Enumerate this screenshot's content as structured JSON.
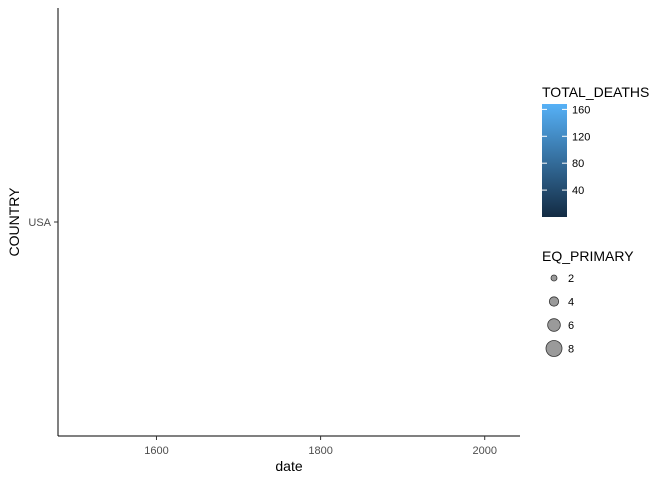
{
  "chart_data": {
    "type": "scatter",
    "xlabel": "date",
    "ylabel": "COUNTRY",
    "x_ticks": [
      1600,
      1800,
      2000
    ],
    "xlim": [
      1480,
      2043
    ],
    "y_categories": [
      "USA"
    ],
    "points": [],
    "grid": false,
    "legend_placement": "right",
    "color_legend": {
      "title": "TOTAL_DEATHS",
      "ticks": [
        40,
        80,
        120,
        160
      ],
      "range": [
        0,
        168
      ],
      "low_color": "#132B43",
      "high_color": "#56B1F7"
    },
    "size_legend": {
      "title": "EQ_PRIMARY",
      "values": [
        2,
        4,
        6,
        8
      ]
    }
  }
}
